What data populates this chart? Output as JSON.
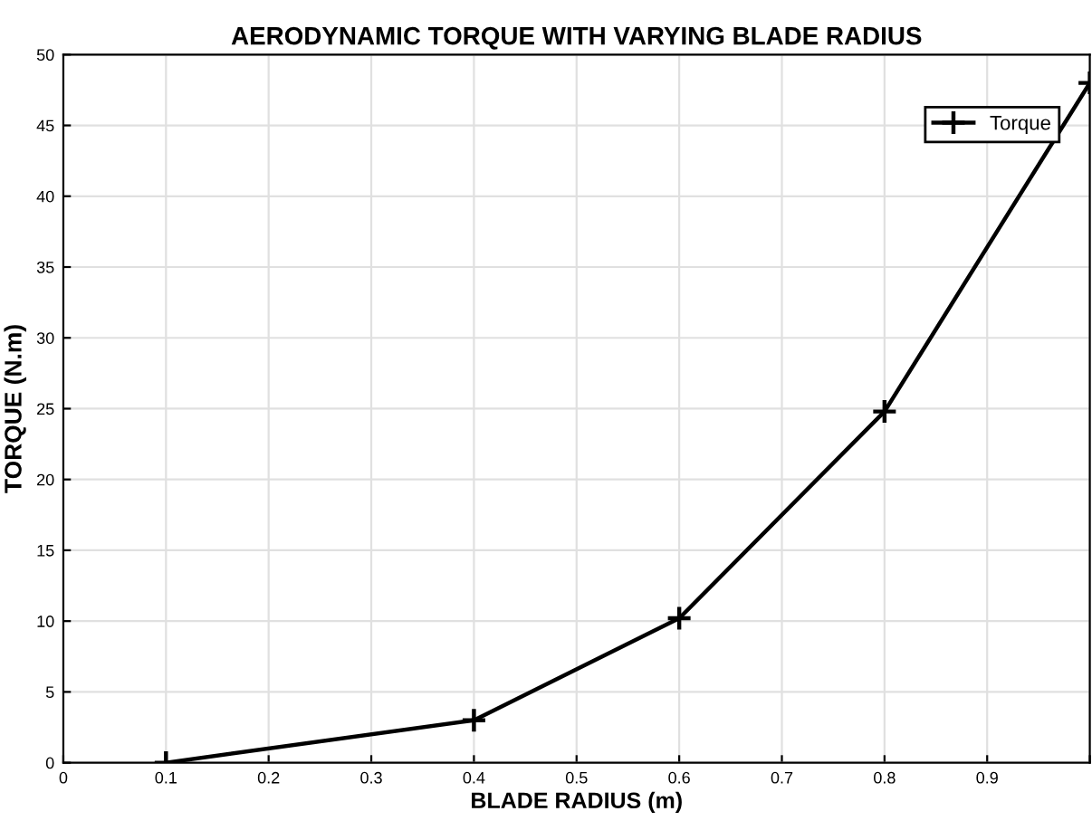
{
  "chart_data": {
    "type": "line",
    "title": "AERODYNAMIC TORQUE WITH VARYING BLADE RADIUS",
    "xlabel": "BLADE RADIUS (m)",
    "ylabel": "TORQUE (N.m)",
    "x": [
      0.1,
      0.4,
      0.6,
      0.8,
      1.0
    ],
    "series": [
      {
        "name": "Torque",
        "color": "#000000",
        "values": [
          0,
          3,
          10.2,
          24.8,
          48
        ]
      }
    ],
    "xlim": [
      0,
      1
    ],
    "xticks": [
      0,
      0.1,
      0.2,
      0.3,
      0.4,
      0.5,
      0.6,
      0.7,
      0.8,
      0.9,
      {
        "value": 1,
        "label": null
      }
    ],
    "ylim": [
      0,
      50
    ],
    "yticks": [
      0,
      5,
      10,
      15,
      20,
      25,
      30,
      35,
      40,
      45,
      50
    ],
    "grid": true,
    "legend": "top right",
    "marker": "cross",
    "line_style": "solid"
  }
}
